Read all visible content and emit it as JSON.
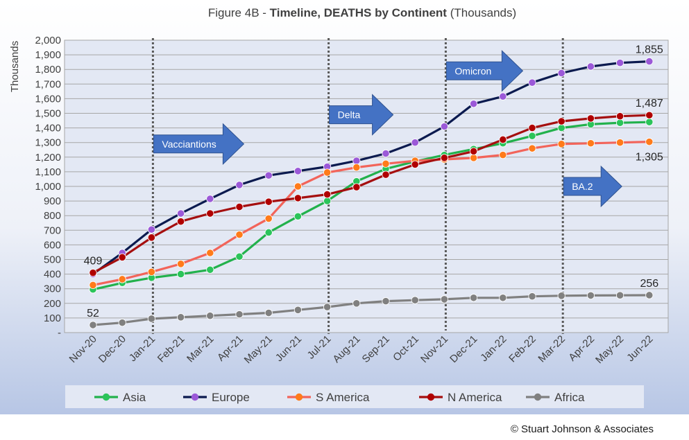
{
  "title": {
    "prefix": "Figure 4B - ",
    "bold": "Timeline, DEATHS by Continent",
    "suffix": " (Thousands)"
  },
  "copyright": "© Stuart Johnson & Associates",
  "colors": {
    "plot_bg": "#e3e8f4",
    "outer_bg_top": "#ffffff",
    "outer_bg_bottom": "#b7c6e5",
    "grid": "#a6a6a6",
    "arrow": "#4472c4"
  },
  "annotations": [
    {
      "label": "Vacciantions",
      "x": "Jan-21",
      "y": 1290
    },
    {
      "label": "Delta",
      "x": "Jul-21",
      "y": 1490
    },
    {
      "label": "Omicron",
      "x": "Nov-21",
      "y": 1790
    },
    {
      "label": "BA.2",
      "x": "Mar-22",
      "y": 1000
    }
  ],
  "value_labels": [
    {
      "text": "409",
      "x": "Nov-20",
      "y": 409,
      "pos": "above"
    },
    {
      "text": "52",
      "x": "Nov-20",
      "y": 52,
      "pos": "above"
    },
    {
      "text": "1,855",
      "x": "Jun-22",
      "y": 1855,
      "pos": "above"
    },
    {
      "text": "1,487",
      "x": "Jun-22",
      "y": 1487,
      "pos": "above"
    },
    {
      "text": "1,305",
      "x": "Jun-22",
      "y": 1305,
      "pos": "below"
    },
    {
      "text": "256",
      "x": "Jun-22",
      "y": 256,
      "pos": "above"
    }
  ],
  "chart_data": {
    "type": "line",
    "title": "Figure 4B - Timeline, DEATHS by Continent (Thousands)",
    "xlabel": "",
    "ylabel": "Thousands",
    "ylim": [
      0,
      2000
    ],
    "ytick_step": 100,
    "grid": true,
    "legend_position": "bottom",
    "vertical_markers": [
      "Jan-21",
      "Jul-21",
      "Nov-21",
      "Mar-22"
    ],
    "categories": [
      "Nov-20",
      "Dec-20",
      "Jan-21",
      "Feb-21",
      "Mar-21",
      "Apr-21",
      "May-21",
      "Jun-21",
      "Jul-21",
      "Aug-21",
      "Sep-21",
      "Oct-21",
      "Nov-21",
      "Dec-21",
      "Jan-22",
      "Feb-22",
      "Mar-22",
      "Apr-22",
      "May-22",
      "Jun-22"
    ],
    "series": [
      {
        "name": "Asia",
        "line_color": "#22b14c",
        "marker_color": "#2bc45a",
        "values": [
          295,
          340,
          375,
          400,
          430,
          520,
          685,
          795,
          900,
          1035,
          1120,
          1170,
          1215,
          1255,
          1295,
          1345,
          1400,
          1425,
          1435,
          1440
        ]
      },
      {
        "name": "Europe",
        "line_color": "#0b1a4f",
        "marker_color": "#9b59d8",
        "values": [
          400,
          545,
          705,
          815,
          915,
          1010,
          1075,
          1105,
          1135,
          1175,
          1225,
          1300,
          1410,
          1565,
          1615,
          1710,
          1775,
          1820,
          1845,
          1855
        ]
      },
      {
        "name": "S America",
        "line_color": "#f2645a",
        "marker_color": "#ff7b1a",
        "values": [
          325,
          365,
          415,
          470,
          545,
          670,
          780,
          1000,
          1095,
          1130,
          1155,
          1175,
          1185,
          1195,
          1215,
          1260,
          1290,
          1295,
          1300,
          1305
        ]
      },
      {
        "name": "N America",
        "line_color": "#a50f0f",
        "marker_color": "#b00000",
        "values": [
          409,
          515,
          650,
          760,
          815,
          860,
          895,
          920,
          945,
          995,
          1080,
          1150,
          1195,
          1240,
          1320,
          1400,
          1445,
          1465,
          1480,
          1487
        ]
      },
      {
        "name": "Africa",
        "line_color": "#808080",
        "marker_color": "#808080",
        "values": [
          52,
          68,
          95,
          105,
          115,
          125,
          135,
          155,
          175,
          200,
          215,
          222,
          228,
          238,
          238,
          248,
          252,
          254,
          255,
          256
        ]
      }
    ]
  }
}
